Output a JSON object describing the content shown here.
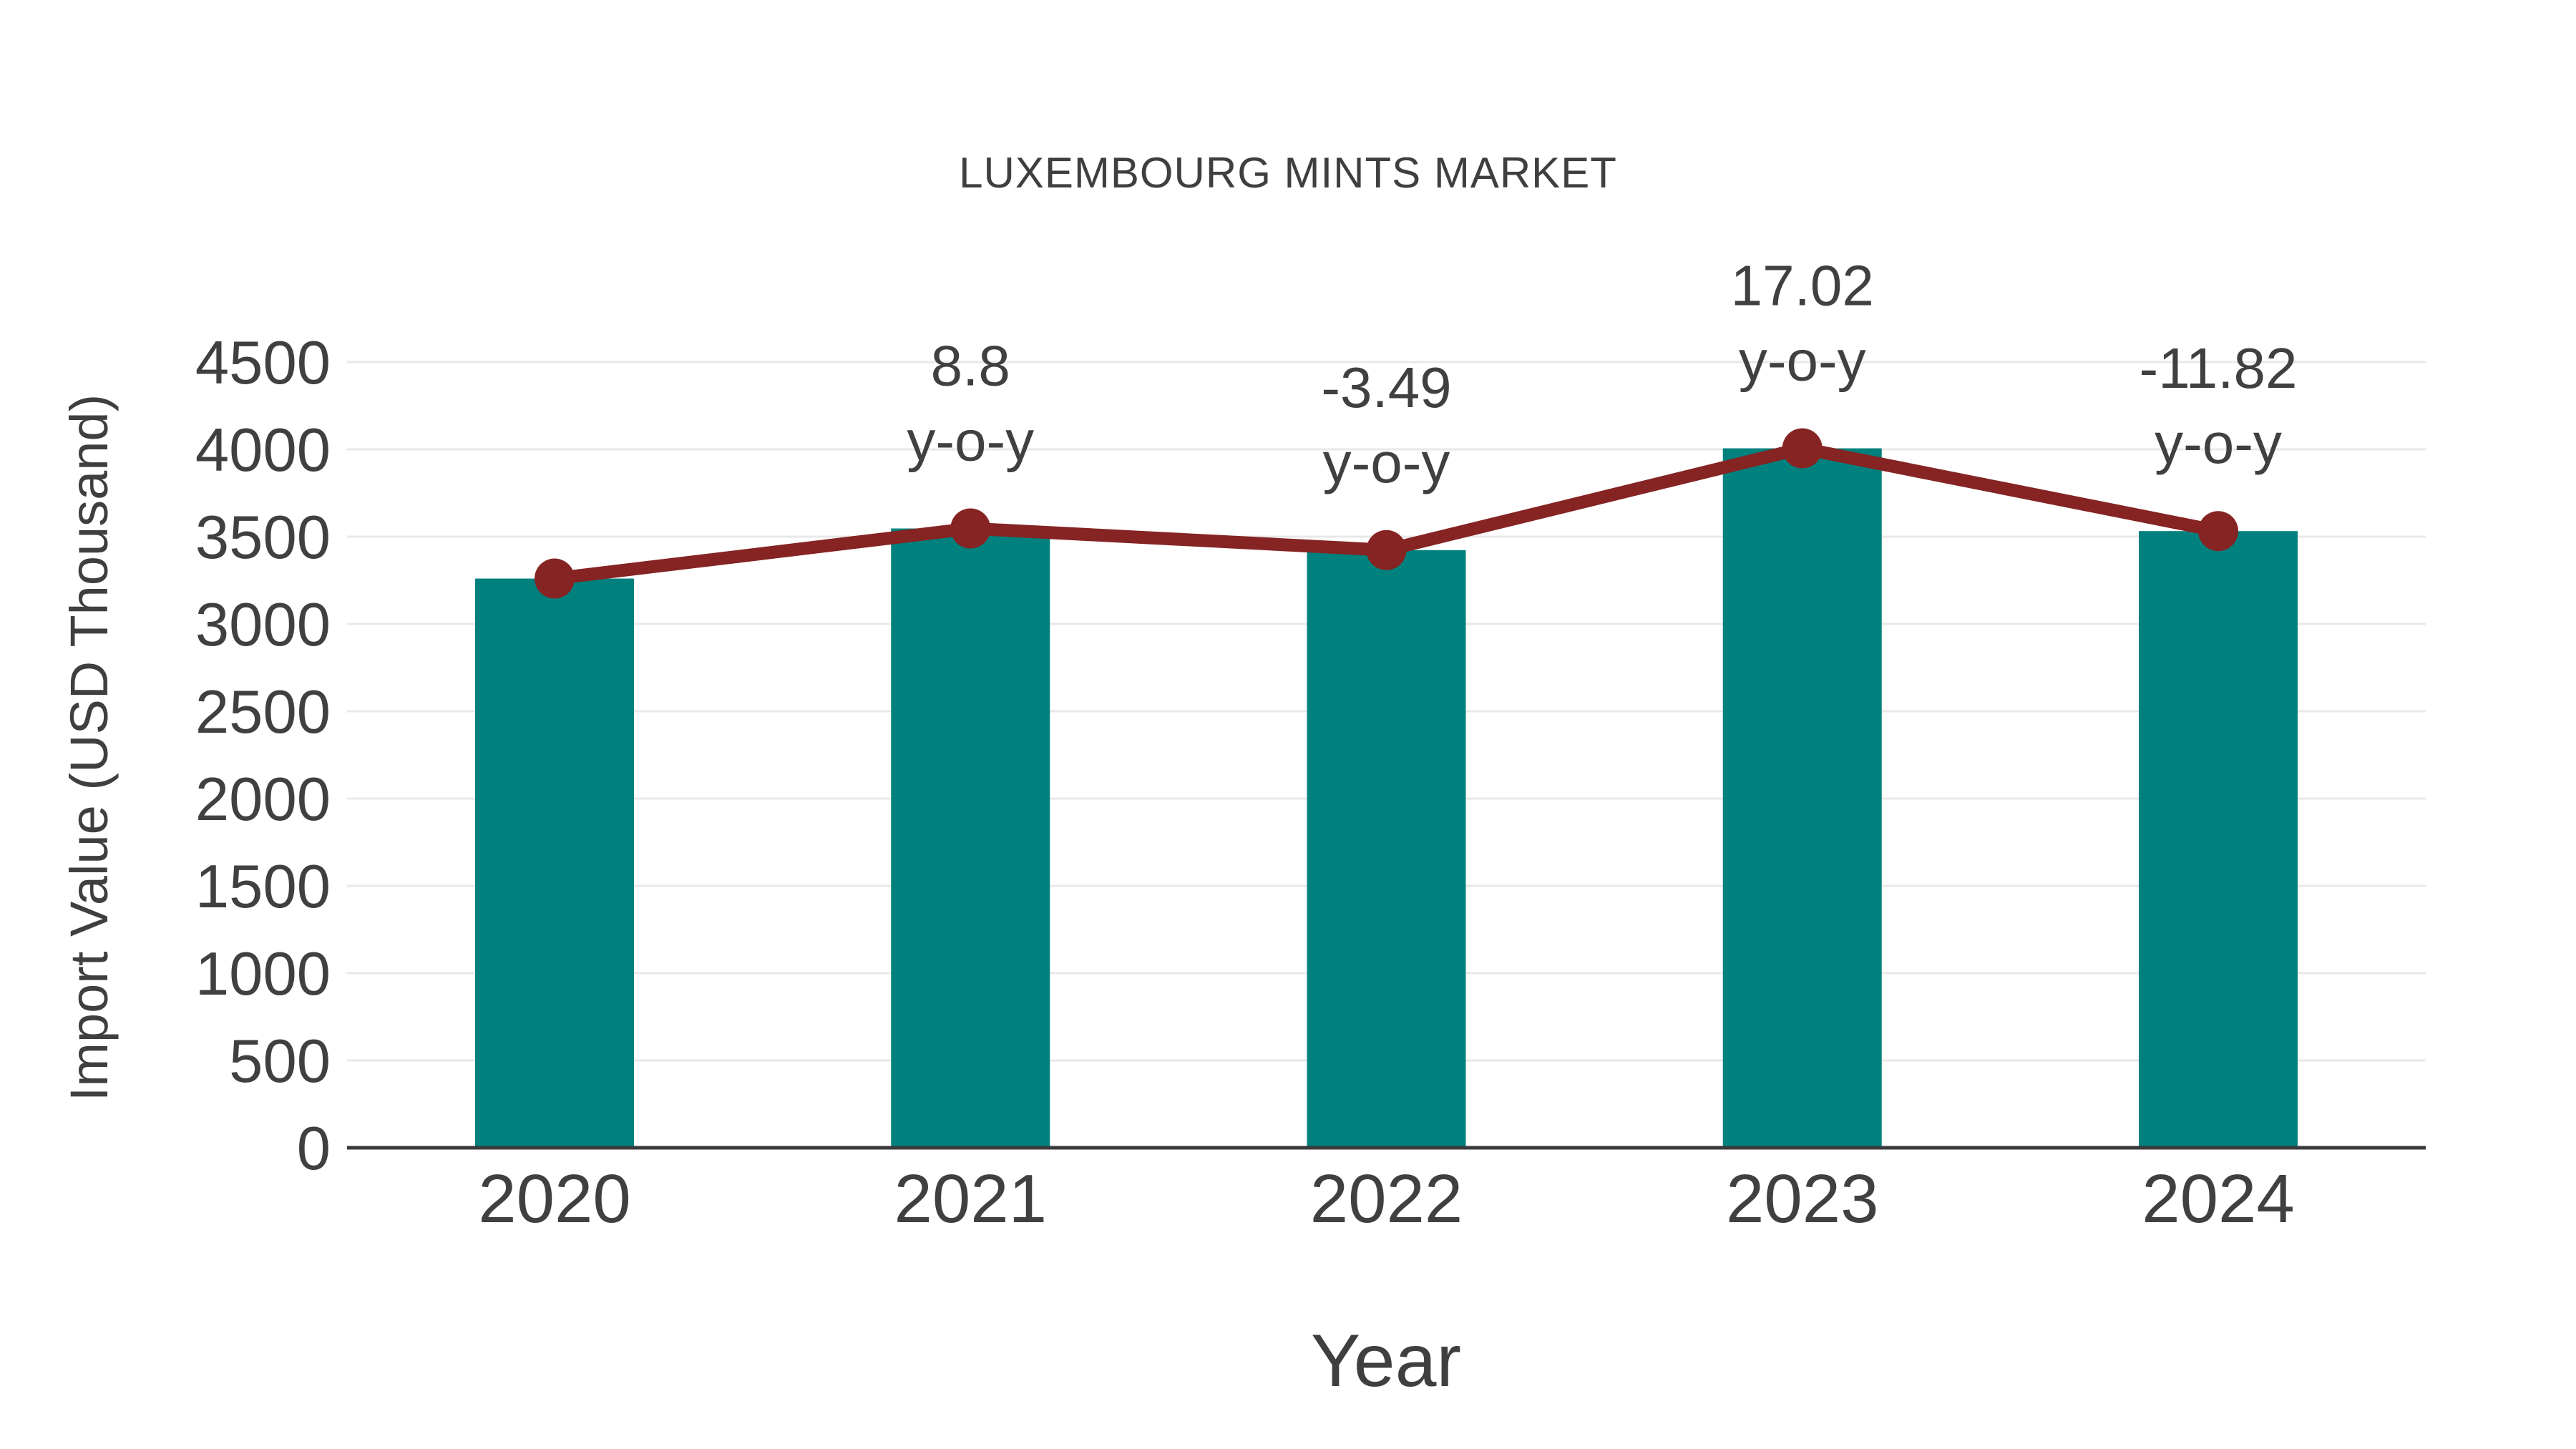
{
  "page": {
    "background": "#ffffff"
  },
  "chart_data": {
    "type": "bar",
    "title": "LUXEMBOURG MINTS MARKET",
    "xlabel": "Year",
    "ylabel": "Import Value (USD Thousand)",
    "categories": [
      "2020",
      "2021",
      "2022",
      "2023",
      "2024"
    ],
    "series": [
      {
        "name": "Import Value bars",
        "type": "bar",
        "color": "#00817d",
        "values": [
          3260,
          3547,
          3423,
          4006,
          3532
        ]
      },
      {
        "name": "Import Value trend line",
        "type": "line",
        "color": "#862323",
        "values": [
          3260,
          3547,
          3423,
          4006,
          3532
        ]
      }
    ],
    "annotations": [
      {
        "category": "2021",
        "value_label": "8.8",
        "suffix_label": "y-o-y"
      },
      {
        "category": "2022",
        "value_label": "-3.49",
        "suffix_label": "y-o-y"
      },
      {
        "category": "2023",
        "value_label": "17.02",
        "suffix_label": "y-o-y"
      },
      {
        "category": "2024",
        "value_label": "-11.82",
        "suffix_label": "y-o-y"
      }
    ],
    "yticks": [
      0,
      500,
      1000,
      1500,
      2000,
      2500,
      3000,
      3500,
      4000,
      4500
    ],
    "ylim": [
      0,
      4500
    ],
    "grid": true,
    "legend_position": "none",
    "colors": {
      "bar": "#00817d",
      "line": "#862323",
      "marker": "#862323",
      "text": "#404040",
      "grid": "#e8e8e8",
      "axis": "#3a3a3a"
    }
  }
}
